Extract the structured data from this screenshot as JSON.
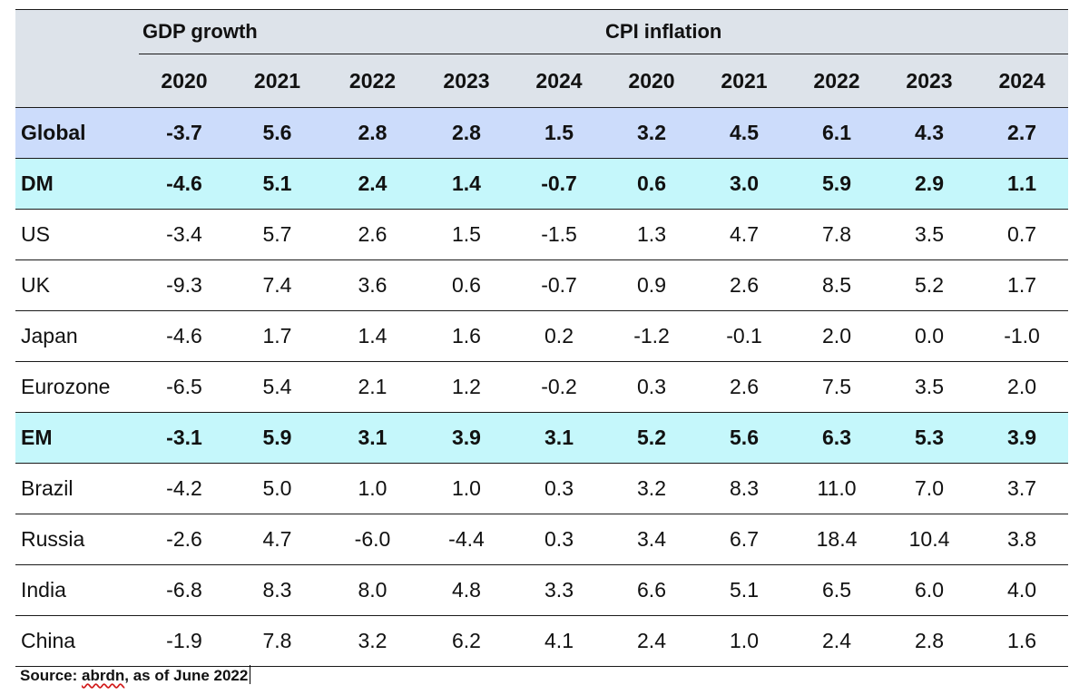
{
  "table": {
    "gdp_header": "GDP growth",
    "cpi_header": "CPI inflation",
    "gdp_years": [
      "2020",
      "2021",
      "2022",
      "2023",
      "2024"
    ],
    "cpi_years": [
      "2020",
      "2021",
      "2022",
      "2023",
      "2024"
    ],
    "rows": [
      {
        "label": "Global",
        "values": [
          "-3.7",
          "5.6",
          "2.8",
          "2.8",
          "1.5",
          "3.2",
          "4.5",
          "6.1",
          "4.3",
          "2.7"
        ]
      },
      {
        "label": "DM",
        "values": [
          "-4.6",
          "5.1",
          "2.4",
          "1.4",
          "-0.7",
          "0.6",
          "3.0",
          "5.9",
          "2.9",
          "1.1"
        ]
      },
      {
        "label": "US",
        "values": [
          "-3.4",
          "5.7",
          "2.6",
          "1.5",
          "-1.5",
          "1.3",
          "4.7",
          "7.8",
          "3.5",
          "0.7"
        ]
      },
      {
        "label": "UK",
        "values": [
          "-9.3",
          "7.4",
          "3.6",
          "0.6",
          "-0.7",
          "0.9",
          "2.6",
          "8.5",
          "5.2",
          "1.7"
        ]
      },
      {
        "label": "Japan",
        "values": [
          "-4.6",
          "1.7",
          "1.4",
          "1.6",
          "0.2",
          "-1.2",
          "-0.1",
          "2.0",
          "0.0",
          "-1.0"
        ]
      },
      {
        "label": "Eurozone",
        "values": [
          "-6.5",
          "5.4",
          "2.1",
          "1.2",
          "-0.2",
          "0.3",
          "2.6",
          "7.5",
          "3.5",
          "2.0"
        ]
      },
      {
        "label": "EM",
        "values": [
          "-3.1",
          "5.9",
          "3.1",
          "3.9",
          "3.1",
          "5.2",
          "5.6",
          "6.3",
          "5.3",
          "3.9"
        ]
      },
      {
        "label": "Brazil",
        "values": [
          "-4.2",
          "5.0",
          "1.0",
          "1.0",
          "0.3",
          "3.2",
          "8.3",
          "11.0",
          "7.0",
          "3.7"
        ]
      },
      {
        "label": "Russia",
        "values": [
          "-2.6",
          "4.7",
          "-6.0",
          "-4.4",
          "0.3",
          "3.4",
          "6.7",
          "18.4",
          "10.4",
          "3.8"
        ]
      },
      {
        "label": "India",
        "values": [
          "-6.8",
          "8.3",
          "8.0",
          "4.8",
          "3.3",
          "6.6",
          "5.1",
          "6.5",
          "6.0",
          "4.0"
        ]
      },
      {
        "label": "China",
        "values": [
          "-1.9",
          "7.8",
          "3.2",
          "6.2",
          "4.1",
          "2.4",
          "1.0",
          "2.4",
          "2.8",
          "1.6"
        ]
      }
    ]
  },
  "source": {
    "prefix": "Source: ",
    "brand": "abrdn",
    "suffix": ", as of June 2022"
  },
  "colors": {
    "header_bg": "#dde3ea",
    "global_bg": "#ccdcfb",
    "region_bg": "#c5f7fb",
    "spellcheck_underline": "#d11a1a"
  }
}
